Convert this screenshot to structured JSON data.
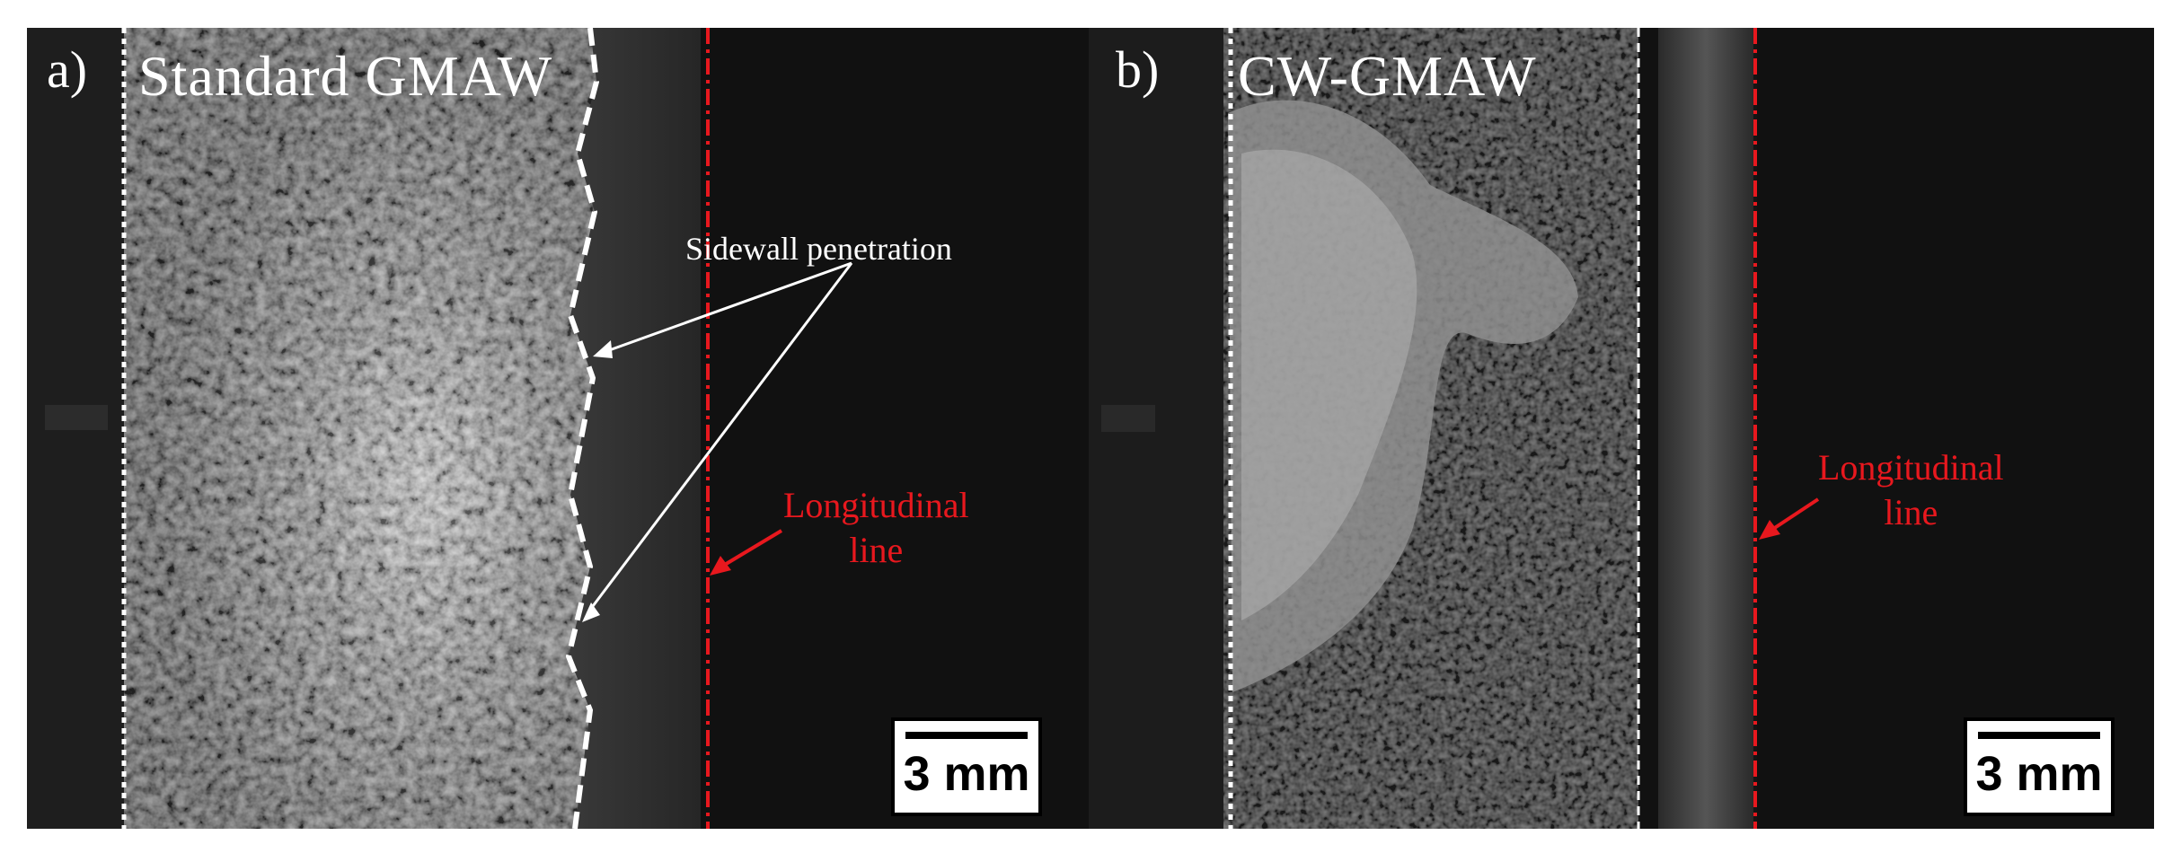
{
  "panel_a": {
    "label": "a)",
    "title": "Standard GMAW",
    "annotation": "Sidewall penetration",
    "longitudinal_line_label": [
      "Longitudinal",
      "line"
    ],
    "scale_bar": "3 mm"
  },
  "panel_b": {
    "label": "b)",
    "title": "CW-GMAW",
    "longitudinal_line_label": [
      "Longitudinal",
      "line"
    ],
    "scale_bar": "3 mm"
  },
  "colors": {
    "annotation_red": "#e8181e",
    "annotation_white": "#ffffff",
    "background_dark": "#141414"
  }
}
